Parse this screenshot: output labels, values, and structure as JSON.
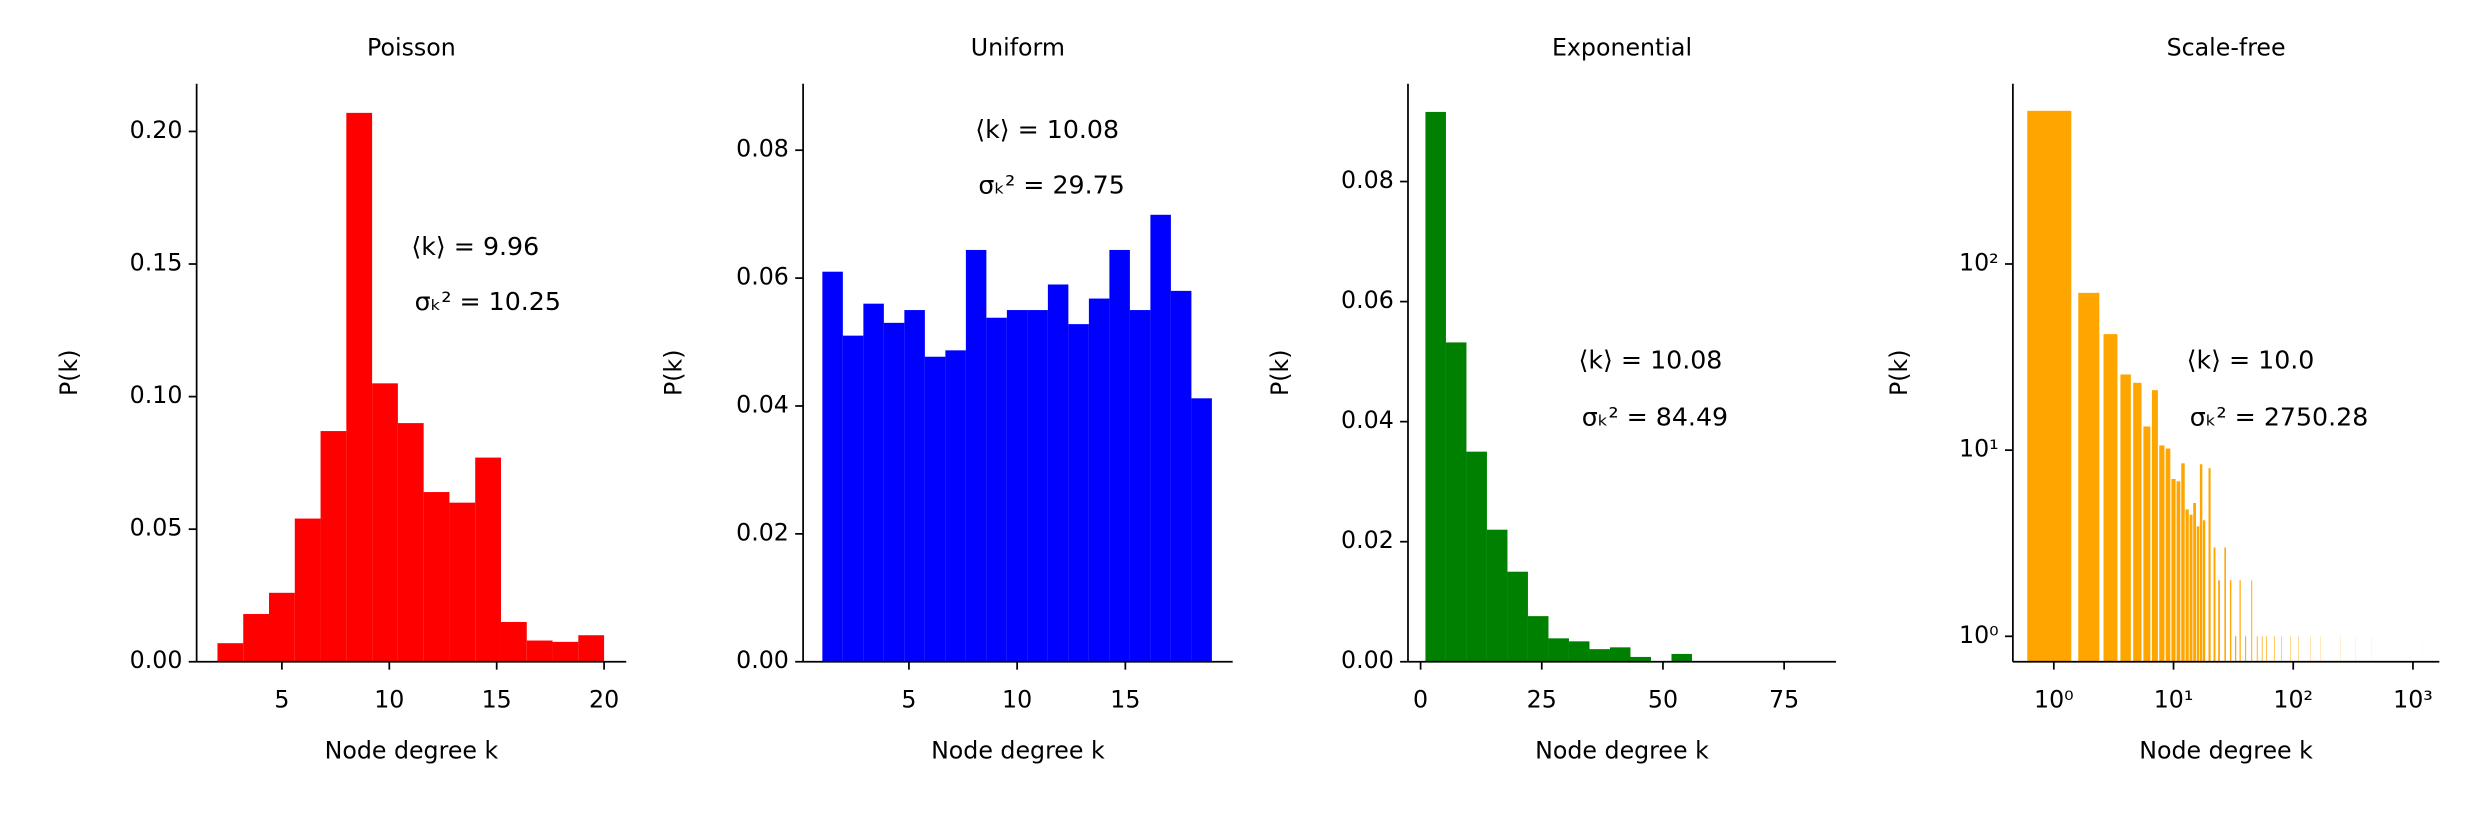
{
  "chart_data": [
    {
      "type": "histogram",
      "title": "Poisson",
      "xlabel": "Node degree k",
      "ylabel": "P(k)",
      "annotations": [
        "⟨k⟩ = 9.96",
        "σₖ² = 10.25"
      ],
      "bins": [
        2,
        3.2,
        4.4,
        5.6,
        6.8,
        8,
        9.2,
        10.4,
        11.6,
        12.8,
        14,
        15.2,
        16.4,
        17.6,
        18.8,
        20
      ],
      "values": [
        0.007,
        0.018,
        0.026,
        0.054,
        0.087,
        0.207,
        0.105,
        0.09,
        0.064,
        0.06,
        0.077,
        0.015,
        0.008,
        0.0075,
        0.01
      ],
      "color": "#ff0000",
      "xlim": [
        1.03,
        21.03
      ],
      "ylim": [
        0,
        0.218
      ],
      "xticks": [
        5,
        10,
        15,
        20
      ],
      "yticks": [
        {
          "value": 0,
          "label": "0.00"
        },
        0.05,
        {
          "value": 0.1,
          "label": "0.10"
        },
        0.15,
        {
          "value": 0.2,
          "label": "0.20"
        }
      ]
    },
    {
      "type": "histogram",
      "title": "Uniform",
      "xlabel": "Node degree k",
      "ylabel": "P(k)",
      "annotations": [
        "⟨k⟩ = 10.08",
        "σₖ² = 29.75"
      ],
      "bins": [
        1,
        1.947,
        2.895,
        3.842,
        4.789,
        5.737,
        6.684,
        7.632,
        8.579,
        9.526,
        10.474,
        11.421,
        12.368,
        13.316,
        14.263,
        15.211,
        16.158,
        17.105,
        18.053,
        19
      ],
      "values": [
        0.061,
        0.051,
        0.056,
        0.053,
        0.055,
        0.0477,
        0.0487,
        0.0644,
        0.0538,
        0.055,
        0.055,
        0.059,
        0.0528,
        0.0568,
        0.0644,
        0.055,
        0.0699,
        0.058,
        0.0412
      ],
      "color": "#0000ff",
      "xlim": [
        0.11,
        19.96
      ],
      "ylim": [
        0,
        0.0904
      ],
      "xticks": [
        5,
        10,
        15
      ],
      "yticks": [
        {
          "value": 0,
          "label": "0.00"
        },
        0.02,
        0.04,
        0.06,
        0.08
      ]
    },
    {
      "type": "histogram",
      "title": "Exponential",
      "xlabel": "Node degree k",
      "ylabel": "P(k)",
      "annotations": [
        "⟨k⟩ = 10.08",
        "σₖ² = 84.49"
      ],
      "bins": [
        1,
        5.23,
        9.46,
        13.69,
        17.92,
        22.15,
        26.38,
        30.61,
        34.84,
        39.07,
        43.3,
        47.53,
        51.76,
        55.99
      ],
      "values": [
        0.0916,
        0.0532,
        0.035,
        0.022,
        0.015,
        0.0076,
        0.0039,
        0.0034,
        0.0021,
        0.0024,
        0.0008,
        0,
        0.0013
      ],
      "color": "#008000",
      "xlim": [
        -2.6,
        85.7
      ],
      "ylim": [
        0,
        0.0963
      ],
      "xticks": [
        0,
        25,
        50,
        75
      ],
      "yticks": [
        {
          "value": 0,
          "label": "0.00"
        },
        0.02,
        0.04,
        0.06,
        0.08
      ]
    },
    {
      "type": "bar",
      "title": "Scale-free",
      "xlabel": "Node degree k",
      "ylabel": "P(k)",
      "annotations": [
        "⟨k⟩ = 10.0",
        "σₖ² = 2750.28"
      ],
      "x": [
        1,
        2,
        3,
        4,
        5,
        6,
        7,
        8,
        9,
        10,
        11,
        12,
        13,
        14,
        15,
        16,
        17,
        18,
        20,
        22,
        24,
        27,
        30,
        33,
        36,
        40,
        45,
        50,
        55,
        60,
        70,
        80,
        95,
        110,
        140,
        170,
        250,
        330,
        450,
        1200
      ],
      "values": [
        665,
        70,
        42,
        25.5,
        23,
        13.4,
        21,
        10.6,
        10.2,
        7,
        6.8,
        8.5,
        4.8,
        4.5,
        5.2,
        3.9,
        8.4,
        4.2,
        8,
        3,
        2,
        3,
        2,
        1,
        2,
        1,
        2,
        1,
        1,
        1,
        1,
        1,
        1,
        1,
        1,
        1,
        1,
        1,
        1,
        1
      ],
      "color": "#ffa500",
      "xlog": true,
      "ylog": true,
      "xlim": [
        0.455,
        1660
      ],
      "ylim": [
        0.73,
        930
      ],
      "xticks": [
        {
          "value": 1,
          "label": "10⁰"
        },
        {
          "value": 10,
          "label": "10¹"
        },
        {
          "value": 100,
          "label": "10²"
        },
        {
          "value": 1000,
          "label": "10³"
        }
      ],
      "yticks": [
        {
          "value": 1,
          "label": "10⁰"
        },
        {
          "value": 10,
          "label": "10¹"
        },
        {
          "value": 100,
          "label": "10²"
        }
      ]
    }
  ]
}
